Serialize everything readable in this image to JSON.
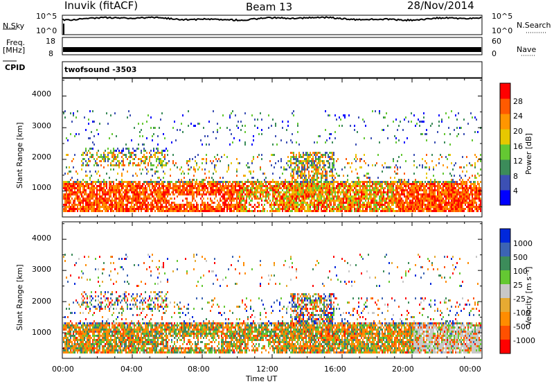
{
  "header": {
    "station": "Inuvik (fitACF)",
    "beam": "Beam 13",
    "date": "28/Nov/2014"
  },
  "noise_panel": {
    "left_label": "N.Sky",
    "right_label": "N.Search",
    "left_ticks": [
      "10^5",
      "10^0"
    ],
    "right_ticks": [
      "10^5",
      "10^0"
    ]
  },
  "freq_panel": {
    "left_label_1": "Freq.",
    "left_label_2": "[MHz]",
    "right_label": "Nave",
    "left_ticks": [
      "18",
      "8"
    ],
    "right_ticks": [
      "60",
      "0"
    ]
  },
  "cpid": {
    "label": "CPID",
    "value": "twofsound -3503"
  },
  "time_axis": {
    "label": "Time UT",
    "ticks": [
      "00:00",
      "04:00",
      "08:00",
      "12:00",
      "16:00",
      "20:00",
      "00:00"
    ]
  },
  "colors": {
    "power": [
      "#0000ff",
      "#3c50b4",
      "#3c8c5a",
      "#64c832",
      "#e6c800",
      "#ff9600",
      "#ff5a00",
      "#ff0000"
    ],
    "velocity": [
      "#0028dc",
      "#3c64b4",
      "#3c8c5a",
      "#64c832",
      "#c8c8c8",
      "#e6aa32",
      "#ff8c00",
      "#ff5000",
      "#ff0000"
    ]
  },
  "chart_data": [
    {
      "type": "heatmap",
      "ylabel": "Slant Range [km]",
      "xlabel": "",
      "y_ticks": [
        "1000",
        "2000",
        "3000",
        "4000"
      ],
      "ylim": [
        180,
        4560
      ],
      "x_range_hours": [
        0,
        24
      ],
      "colorbar": {
        "label": "Power [dB]",
        "ticks": [
          "4",
          "8",
          "12",
          "16",
          "20",
          "24",
          "28"
        ],
        "range": [
          0,
          32
        ]
      }
    },
    {
      "type": "heatmap",
      "ylabel": "Slant Range [km]",
      "xlabel": "Time UT",
      "y_ticks": [
        "1000",
        "2000",
        "3000",
        "4000"
      ],
      "ylim": [
        180,
        4560
      ],
      "x_range_hours": [
        0,
        24
      ],
      "colorbar": {
        "label": "Velocity [m s⁻¹]",
        "ticks": [
          "1000",
          "500",
          "100",
          "25",
          "-25",
          "-100",
          "-500",
          "-1000"
        ]
      }
    }
  ]
}
